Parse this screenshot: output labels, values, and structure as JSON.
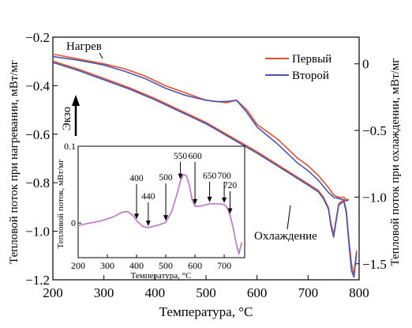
{
  "chart_data": [
    {
      "type": "line",
      "xlabel": "Температура, °C",
      "ylabel_left": "Тепловой поток при нагревании, мВт/мг",
      "ylabel_right": "Тепловой поток при охлаждении, мВт/мг",
      "xlim": [
        200,
        800
      ],
      "ylim_left": [
        -1.2,
        -0.2
      ],
      "ylim_right": [
        -1.62,
        0.2
      ],
      "xticks": [
        "200",
        "300",
        "400",
        "500",
        "600",
        "700",
        "800"
      ],
      "yticks_left": [
        "−0.2",
        "−0.4",
        "−0.6",
        "−0.8",
        "−1.0",
        "−1.2"
      ],
      "yticks_right": [
        "0",
        "−0.5",
        "−1.0",
        "−1.5"
      ],
      "legend": {
        "position": "top-right",
        "entries": [
          "Первый",
          "Второй"
        ]
      },
      "annotations": {
        "heating": "Нагрев",
        "cooling": "Охлаждение",
        "exo": "Экзо"
      },
      "series": [
        {
          "name": "Первый",
          "color": "#e8502a",
          "group": "heating",
          "x": [
            200,
            250,
            300,
            340,
            380,
            420,
            460,
            500,
            520,
            540,
            560,
            580,
            600,
            640,
            680,
            700,
            720,
            740,
            750,
            760,
            770,
            775,
            780
          ],
          "y": [
            -0.27,
            -0.29,
            -0.31,
            -0.33,
            -0.36,
            -0.4,
            -0.43,
            -0.46,
            -0.465,
            -0.47,
            -0.46,
            -0.5,
            -0.56,
            -0.62,
            -0.7,
            -0.73,
            -0.77,
            -0.82,
            -0.85,
            -0.86,
            -0.86,
            -0.87,
            -0.87
          ]
        },
        {
          "name": "Второй",
          "color": "#4a55b0",
          "group": "heating",
          "x": [
            200,
            250,
            300,
            340,
            380,
            420,
            460,
            500,
            520,
            540,
            560,
            580,
            600,
            640,
            680,
            700,
            720,
            740,
            750,
            760,
            770,
            775,
            780
          ],
          "y": [
            -0.28,
            -0.295,
            -0.315,
            -0.34,
            -0.37,
            -0.41,
            -0.44,
            -0.46,
            -0.465,
            -0.465,
            -0.46,
            -0.51,
            -0.57,
            -0.64,
            -0.72,
            -0.75,
            -0.79,
            -0.84,
            -0.86,
            -0.865,
            -0.87,
            -0.875,
            -0.87
          ]
        },
        {
          "name": "Первый",
          "color": "#e8502a",
          "group": "cooling",
          "x": [
            200,
            250,
            300,
            350,
            400,
            450,
            500,
            550,
            600,
            650,
            700,
            720,
            730,
            740,
            745,
            750,
            760,
            770,
            775,
            780,
            785,
            790,
            795
          ],
          "y": [
            0.02,
            -0.04,
            -0.11,
            -0.18,
            -0.26,
            -0.35,
            -0.44,
            -0.55,
            -0.66,
            -0.78,
            -0.9,
            -0.95,
            -1.0,
            -1.08,
            -1.2,
            -1.28,
            -1.05,
            -1.02,
            -1.1,
            -1.32,
            -1.5,
            -1.58,
            -1.4
          ]
        },
        {
          "name": "Второй",
          "color": "#4a55b0",
          "group": "cooling",
          "x": [
            200,
            250,
            300,
            350,
            400,
            450,
            500,
            550,
            600,
            650,
            700,
            720,
            730,
            740,
            745,
            750,
            760,
            770,
            775,
            780,
            785,
            790,
            795
          ],
          "y": [
            0.01,
            -0.05,
            -0.12,
            -0.19,
            -0.27,
            -0.36,
            -0.45,
            -0.56,
            -0.67,
            -0.79,
            -0.91,
            -0.96,
            -1.01,
            -1.09,
            -1.22,
            -1.3,
            -1.06,
            -1.03,
            -1.12,
            -1.35,
            -1.55,
            -1.6,
            -1.42
          ]
        }
      ]
    },
    {
      "type": "line",
      "xlabel": "Температура, °C",
      "ylabel": "Тепловой поток, мВт/мг",
      "xlim": [
        200,
        770
      ],
      "ylim": [
        -0.045,
        0.1
      ],
      "xticks": [
        "200",
        "300",
        "400",
        "500",
        "600",
        "700"
      ],
      "yticks": [
        "0",
        "0.1"
      ],
      "markers": [
        "400",
        "440",
        "500",
        "550",
        "600",
        "650",
        "700",
        "720"
      ],
      "series": [
        {
          "color": "#c080c8",
          "x": [
            200,
            240,
            280,
            320,
            350,
            370,
            390,
            400,
            420,
            440,
            460,
            480,
            500,
            520,
            540,
            550,
            560,
            570,
            580,
            590,
            600,
            620,
            650,
            680,
            700,
            710,
            720,
            730,
            740,
            750,
            760
          ],
          "y": [
            -0.003,
            0.0,
            0.003,
            0.008,
            0.014,
            0.015,
            0.009,
            0.003,
            -0.004,
            -0.006,
            -0.004,
            -0.002,
            0.001,
            0.015,
            0.04,
            0.055,
            0.063,
            0.062,
            0.05,
            0.03,
            0.022,
            0.022,
            0.025,
            0.025,
            0.024,
            0.02,
            0.01,
            -0.005,
            -0.025,
            -0.04,
            -0.025
          ]
        }
      ]
    }
  ]
}
